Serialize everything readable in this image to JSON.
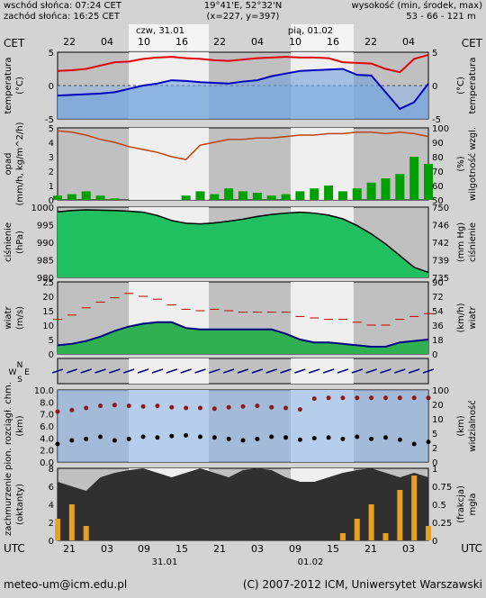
{
  "header": {
    "sunrise": "wschód słońca: 07:24 CET",
    "sunset": "zachód słońca: 16:25 CET",
    "coords": "19°41'E, 52°32'N",
    "grid": "(x=227, y=397)",
    "height_label": "wysokość (min, środek, max)",
    "height_values": "53 - 66 - 121 m"
  },
  "top_axis": {
    "tz": "CET",
    "date1": "czw, 31.01",
    "date2": "pią, 01.02",
    "hours": [
      "22",
      "04",
      "10",
      "16",
      "22",
      "04",
      "10",
      "16",
      "22",
      "04"
    ]
  },
  "bottom_axis": {
    "tz": "UTC",
    "date1": "31.01",
    "date2": "01.02",
    "hours": [
      "21",
      "03",
      "09",
      "15",
      "21",
      "03",
      "09",
      "15",
      "21",
      "03"
    ]
  },
  "panels": {
    "temperature": {
      "left": [
        "temperatura",
        "(°C)"
      ],
      "right": [
        "temperatura",
        "(°C)"
      ],
      "ticks": [
        "5",
        "0",
        "-5"
      ]
    },
    "precip": {
      "left": [
        "opad",
        "(mm/h, kg/m^2/h)"
      ],
      "right": [
        "wilgotność wzgl.",
        "(%)"
      ],
      "ticks_left": [
        "5",
        "4",
        "3",
        "2",
        "1",
        "0"
      ],
      "ticks_right": [
        "100",
        "90",
        "80",
        "70",
        "60",
        "50"
      ]
    },
    "pressure": {
      "left": [
        "ciśnienie",
        "(hPa)"
      ],
      "right": [
        "ciśnienie",
        "(mm Hg)"
      ],
      "ticks_left": [
        "1000",
        "995",
        "990",
        "985",
        "980"
      ],
      "ticks_right": [
        "750",
        "746",
        "742",
        "739",
        "735"
      ]
    },
    "wind": {
      "left": [
        "wiatr",
        "(m/s)"
      ],
      "right": [
        "wiatr",
        "(km/h)"
      ],
      "ticks_left": [
        "25",
        "20",
        "15",
        "10",
        "5",
        "0"
      ],
      "ticks_right": [
        "90",
        "72",
        "54",
        "36",
        "18",
        "0"
      ]
    },
    "wind_dir": {
      "left_N": "N",
      "left_W": "W",
      "left_E": "E",
      "left_S": "S"
    },
    "clouds_base": {
      "left": [
        "pion. rozciągł. chm.",
        "(km)"
      ],
      "right": [
        "widzialność",
        "(km)"
      ],
      "ticks_left": [
        "10.0",
        "8.0",
        "7.0",
        "6.0",
        "4.0",
        "2.0",
        "0.0"
      ],
      "ticks_right": [
        "100",
        "20",
        "10",
        "5",
        "2",
        "0"
      ]
    },
    "cloud_cover": {
      "left": [
        "zachmurzenie",
        "(oktanty)"
      ],
      "right": [
        "mgła",
        "(frakcja)"
      ],
      "ticks_left": [
        "8",
        "6",
        "4",
        "2",
        "0"
      ],
      "ticks_right": [
        "1",
        "0.75",
        "0.5",
        "0.25",
        "0"
      ]
    }
  },
  "footer": {
    "email": "meteo-um@icm.edu.pl",
    "copyright": "(C) 2007-2012 ICM, Uniwersytet Warszawski"
  },
  "colors": {
    "temp_line": "#e00000",
    "dew_line": "#0000c0",
    "humidity_line": "#c04000",
    "precip_bar": "#00a000",
    "pressure_fill": "#20c060",
    "wind_line": "#000080",
    "cloud_dark": "#303030"
  },
  "chart_data": [
    {
      "type": "line",
      "title": "temperatura",
      "ylabel": "(°C)",
      "ylim": [
        -5,
        5
      ],
      "series": [
        {
          "values": [
            2.2,
            2.3,
            2.5,
            3,
            3.5,
            3.6,
            4,
            4.2,
            4.3,
            4.1,
            4,
            3.8,
            3.7,
            3.9,
            4.1,
            4.2,
            4.3,
            4.2,
            4.2,
            4.1,
            3.5,
            3.4,
            3.3,
            2.5,
            2,
            4,
            4.6
          ]
        },
        {
          "values": [
            -1.5,
            -1.4,
            -1.3,
            -1.2,
            -1,
            -0.5,
            0,
            0.3,
            0.8,
            0.7,
            0.5,
            0.4,
            0.3,
            0.6,
            0.8,
            1.4,
            1.8,
            2.2,
            2.3,
            2.4,
            2.5,
            1.6,
            1.5,
            -1,
            -3.5,
            -2.5,
            0.3
          ]
        }
      ]
    },
    {
      "type": "bar",
      "title": "opad / wilgotność wzgl.",
      "ylim_left": [
        0,
        5
      ],
      "ylim_right": [
        50,
        100
      ],
      "series": [
        {
          "values": [
            0.3,
            0.4,
            0.6,
            0.3,
            0.1,
            0,
            0,
            0,
            0,
            0.3,
            0.6,
            0.4,
            0.8,
            0.6,
            0.5,
            0.3,
            0.4,
            0.6,
            0.8,
            1,
            0.6,
            0.8,
            1.2,
            1.5,
            1.8,
            3,
            2.5
          ]
        },
        {
          "values": [
            98,
            97,
            95,
            92,
            90,
            87,
            85,
            83,
            80,
            78,
            88,
            90,
            92,
            92,
            93,
            93,
            94,
            95,
            95,
            96,
            96,
            97,
            97,
            96,
            97,
            96,
            94
          ]
        }
      ]
    },
    {
      "type": "area",
      "title": "ciśnienie",
      "ylabel": "(hPa)",
      "ylim": [
        980,
        1001
      ],
      "series": [
        {
          "values": [
            999.6,
            1000,
            1000.2,
            1000.1,
            1000,
            999.8,
            999.5,
            998.5,
            997,
            996.2,
            996,
            996.3,
            996.8,
            997.4,
            998.2,
            998.8,
            999.2,
            999.5,
            999.2,
            998.6,
            997.5,
            995.5,
            993,
            990,
            986.5,
            983,
            981.5
          ]
        }
      ]
    },
    {
      "type": "line",
      "title": "wiatr",
      "ylabel": "(m/s)",
      "ylim": [
        0,
        25
      ],
      "series": [
        {
          "values": [
            3,
            3.5,
            4.5,
            6,
            8,
            9.5,
            10.5,
            11,
            11,
            9,
            8.5,
            8.5,
            8.5,
            8.5,
            8.5,
            8.5,
            7,
            5,
            4,
            4,
            3.5,
            3,
            2.5,
            2.5,
            4,
            4.5,
            5
          ]
        },
        {
          "values": [
            12,
            13.5,
            16,
            18,
            19.5,
            21,
            20,
            19,
            17,
            15.5,
            15,
            15.5,
            15,
            14.5,
            14.5,
            14.5,
            14.5,
            13,
            12.5,
            12,
            12,
            11,
            10,
            10,
            12,
            13,
            14
          ]
        }
      ]
    },
    {
      "type": "scatter",
      "title": "pion. rozciągł. chm. / widzialność",
      "ylim": [
        0,
        10
      ],
      "series": [
        {
          "values": [
            7,
            7.2,
            7.5,
            7.8,
            7.9,
            7.8,
            7.7,
            7.8,
            7.6,
            7.5,
            7.5,
            7.4,
            7.6,
            7.7,
            7.8,
            7.6,
            7.5,
            7.3,
            8.8,
            8.9,
            8.9,
            8.9,
            8.9,
            8.9,
            8.9,
            8.9,
            8.9
          ]
        },
        {
          "values": [
            2.5,
            3,
            3.2,
            3.5,
            3,
            3.2,
            3.5,
            3.4,
            3.6,
            3.7,
            3.5,
            3.4,
            3.2,
            3,
            3.2,
            3.5,
            3.4,
            3.1,
            3.3,
            3.4,
            3.2,
            3.5,
            3.2,
            3.4,
            3.1,
            2.5,
            2.8
          ]
        }
      ]
    },
    {
      "type": "area",
      "title": "zachmurzenie",
      "ylabel": "(oktanty)",
      "ylim": [
        0,
        8
      ],
      "series": [
        {
          "values": [
            6.5,
            6,
            5.5,
            7,
            7.5,
            7.8,
            8,
            7.5,
            7,
            7.5,
            8,
            7.5,
            7,
            7.8,
            8,
            7.8,
            7,
            6.5,
            6.5,
            7,
            7.5,
            7.8,
            8,
            7.5,
            7,
            7.5,
            7
          ]
        },
        {
          "values": [
            0.3,
            0.5,
            0.2,
            0,
            0,
            0,
            0,
            0,
            0,
            0,
            0,
            0,
            0,
            0,
            0,
            0,
            0,
            0,
            0,
            0,
            0.1,
            0.3,
            0.5,
            0.1,
            0.7,
            0.9,
            0.2
          ]
        }
      ]
    }
  ]
}
